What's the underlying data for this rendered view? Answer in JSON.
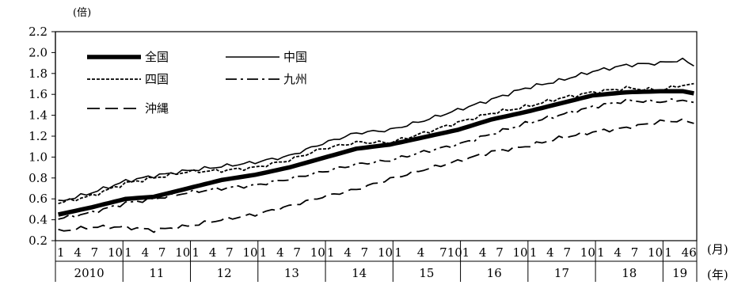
{
  "chart_data": {
    "type": "line",
    "ylabel_unit": "(倍)",
    "x_unit_month": "(月)",
    "x_unit_year": "(年)",
    "ylim": [
      0.2,
      2.2
    ],
    "y_ticks": [
      "2.2",
      "2.0",
      "1.8",
      "1.6",
      "1.4",
      "1.2",
      "1.0",
      "0.8",
      "0.6",
      "0.4",
      "0.2"
    ],
    "x_month_labels": [
      [
        "1",
        "4",
        "7",
        "10"
      ],
      [
        "1",
        "4",
        "7",
        "10"
      ],
      [
        "1",
        "4",
        "7",
        "10"
      ],
      [
        "1",
        "4",
        "7",
        "10"
      ],
      [
        "1",
        "4",
        "7",
        "10"
      ],
      [
        "1",
        "4",
        "710"
      ],
      [
        "1",
        "4",
        "7",
        "10"
      ],
      [
        "1",
        "4",
        "7",
        "10"
      ],
      [
        "1",
        "4",
        "7",
        "10"
      ],
      [
        "1",
        "46"
      ]
    ],
    "years": [
      "2010",
      "11",
      "12",
      "13",
      "14",
      "15",
      "16",
      "17",
      "18",
      "19"
    ],
    "x_start": "2010-01",
    "x_end": "2019-06",
    "legend": [
      {
        "name": "全国",
        "style": "thick"
      },
      {
        "name": "中国",
        "style": "thin"
      },
      {
        "name": "四国",
        "style": "dotted"
      },
      {
        "name": "九州",
        "style": "dashdot"
      },
      {
        "name": "沖縄",
        "style": "dashed"
      }
    ],
    "series": [
      {
        "name": "全国",
        "anchors": [
          [
            "2010-01",
            0.45
          ],
          [
            "2010-07",
            0.52
          ],
          [
            "2011-01",
            0.6
          ],
          [
            "2011-06",
            0.62
          ],
          [
            "2011-12",
            0.7
          ],
          [
            "2012-06",
            0.78
          ],
          [
            "2012-12",
            0.83
          ],
          [
            "2013-06",
            0.9
          ],
          [
            "2013-12",
            0.99
          ],
          [
            "2014-06",
            1.08
          ],
          [
            "2014-12",
            1.12
          ],
          [
            "2015-06",
            1.19
          ],
          [
            "2015-12",
            1.26
          ],
          [
            "2016-06",
            1.36
          ],
          [
            "2016-12",
            1.43
          ],
          [
            "2017-06",
            1.51
          ],
          [
            "2017-12",
            1.59
          ],
          [
            "2018-06",
            1.62
          ],
          [
            "2018-12",
            1.63
          ],
          [
            "2019-04",
            1.63
          ],
          [
            "2019-06",
            1.61
          ]
        ]
      },
      {
        "name": "中国",
        "anchors": [
          [
            "2010-01",
            0.57
          ],
          [
            "2010-07",
            0.66
          ],
          [
            "2011-01",
            0.77
          ],
          [
            "2011-06",
            0.82
          ],
          [
            "2011-12",
            0.87
          ],
          [
            "2012-06",
            0.91
          ],
          [
            "2012-12",
            0.95
          ],
          [
            "2013-06",
            1.01
          ],
          [
            "2013-12",
            1.13
          ],
          [
            "2014-06",
            1.23
          ],
          [
            "2014-12",
            1.26
          ],
          [
            "2015-06",
            1.35
          ],
          [
            "2015-12",
            1.45
          ],
          [
            "2016-06",
            1.55
          ],
          [
            "2016-12",
            1.66
          ],
          [
            "2017-06",
            1.73
          ],
          [
            "2017-12",
            1.82
          ],
          [
            "2018-06",
            1.88
          ],
          [
            "2018-12",
            1.9
          ],
          [
            "2019-04",
            1.93
          ],
          [
            "2019-06",
            1.88
          ]
        ]
      },
      {
        "name": "四国",
        "anchors": [
          [
            "2010-01",
            0.56
          ],
          [
            "2010-07",
            0.63
          ],
          [
            "2011-01",
            0.75
          ],
          [
            "2011-06",
            0.8
          ],
          [
            "2011-12",
            0.86
          ],
          [
            "2012-06",
            0.87
          ],
          [
            "2012-12",
            0.9
          ],
          [
            "2013-06",
            0.97
          ],
          [
            "2013-12",
            1.08
          ],
          [
            "2014-06",
            1.14
          ],
          [
            "2014-12",
            1.14
          ],
          [
            "2015-06",
            1.23
          ],
          [
            "2015-12",
            1.33
          ],
          [
            "2016-06",
            1.42
          ],
          [
            "2016-12",
            1.48
          ],
          [
            "2017-06",
            1.56
          ],
          [
            "2017-12",
            1.62
          ],
          [
            "2018-06",
            1.66
          ],
          [
            "2018-12",
            1.64
          ],
          [
            "2019-04",
            1.69
          ],
          [
            "2019-06",
            1.69
          ]
        ]
      },
      {
        "name": "九州",
        "anchors": [
          [
            "2010-01",
            0.41
          ],
          [
            "2010-07",
            0.47
          ],
          [
            "2011-01",
            0.56
          ],
          [
            "2011-06",
            0.6
          ],
          [
            "2011-12",
            0.66
          ],
          [
            "2012-06",
            0.7
          ],
          [
            "2012-12",
            0.73
          ],
          [
            "2013-06",
            0.79
          ],
          [
            "2013-12",
            0.86
          ],
          [
            "2014-06",
            0.93
          ],
          [
            "2014-12",
            0.97
          ],
          [
            "2015-06",
            1.05
          ],
          [
            "2015-12",
            1.12
          ],
          [
            "2016-06",
            1.22
          ],
          [
            "2016-12",
            1.32
          ],
          [
            "2017-06",
            1.4
          ],
          [
            "2017-12",
            1.48
          ],
          [
            "2018-06",
            1.54
          ],
          [
            "2018-12",
            1.53
          ],
          [
            "2019-04",
            1.55
          ],
          [
            "2019-06",
            1.51
          ]
        ]
      },
      {
        "name": "沖縄",
        "anchors": [
          [
            "2010-01",
            0.29
          ],
          [
            "2010-07",
            0.33
          ],
          [
            "2011-01",
            0.33
          ],
          [
            "2011-06",
            0.3
          ],
          [
            "2011-12",
            0.34
          ],
          [
            "2012-06",
            0.4
          ],
          [
            "2012-12",
            0.45
          ],
          [
            "2013-06",
            0.53
          ],
          [
            "2013-12",
            0.62
          ],
          [
            "2014-06",
            0.69
          ],
          [
            "2014-12",
            0.79
          ],
          [
            "2015-06",
            0.88
          ],
          [
            "2015-12",
            0.96
          ],
          [
            "2016-06",
            1.05
          ],
          [
            "2016-12",
            1.1
          ],
          [
            "2017-06",
            1.18
          ],
          [
            "2017-12",
            1.24
          ],
          [
            "2018-06",
            1.28
          ],
          [
            "2018-12",
            1.34
          ],
          [
            "2019-04",
            1.35
          ],
          [
            "2019-06",
            1.33
          ]
        ]
      }
    ]
  }
}
